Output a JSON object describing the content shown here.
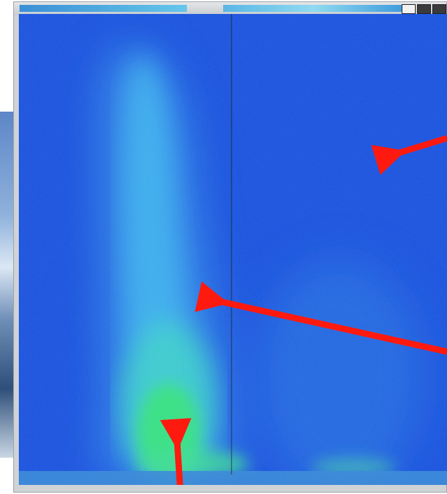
{
  "window": {
    "title": ""
  },
  "spectrogram": {
    "colors": {
      "background": "#1050e0",
      "mid": "#28a0e8",
      "high": "#34e0b0",
      "peak": "#2ee86a",
      "cursor_line": "#202020",
      "annotation_arrow": "#ff1a10"
    }
  },
  "annotations": [
    {
      "name": "arrow-upper-right-pointing-left"
    },
    {
      "name": "arrow-center-right-pointing-left"
    },
    {
      "name": "arrow-bottom-pointing-up"
    }
  ]
}
